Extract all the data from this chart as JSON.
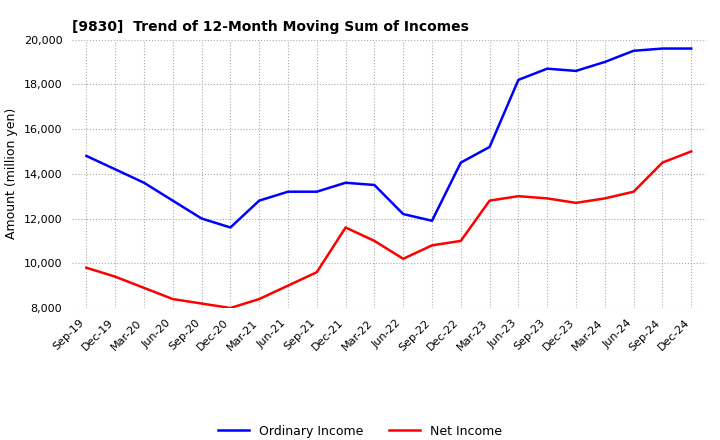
{
  "title": "[9830]  Trend of 12-Month Moving Sum of Incomes",
  "ylabel": "Amount (million yen)",
  "ylim": [
    8000,
    20000
  ],
  "yticks": [
    8000,
    10000,
    12000,
    14000,
    16000,
    18000,
    20000
  ],
  "line_color_ordinary": "#0000FF",
  "line_color_net": "#FF0000",
  "legend_ordinary": "Ordinary Income",
  "legend_net": "Net Income",
  "x_labels": [
    "Sep-19",
    "Dec-19",
    "Mar-20",
    "Jun-20",
    "Sep-20",
    "Dec-20",
    "Mar-21",
    "Jun-21",
    "Sep-21",
    "Dec-21",
    "Mar-22",
    "Jun-22",
    "Sep-22",
    "Dec-22",
    "Mar-23",
    "Jun-23",
    "Sep-23",
    "Dec-23",
    "Mar-24",
    "Jun-24",
    "Sep-24",
    "Dec-24"
  ],
  "ordinary_income": [
    14800,
    14200,
    13600,
    12800,
    12000,
    11600,
    12800,
    13200,
    13200,
    13600,
    13500,
    12200,
    11900,
    14500,
    15200,
    18200,
    18700,
    18600,
    19000,
    19500,
    19600,
    19600
  ],
  "net_income": [
    9800,
    9400,
    8900,
    8400,
    8200,
    8000,
    8400,
    9000,
    9600,
    11600,
    11000,
    10200,
    10800,
    11000,
    12800,
    13000,
    12900,
    12700,
    12900,
    13200,
    14500,
    15000
  ],
  "grid_color": "#aaaaaa",
  "grid_linestyle": ":",
  "grid_linewidth": 0.8,
  "title_fontsize": 10,
  "tick_fontsize": 8,
  "ylabel_fontsize": 9,
  "line_width": 1.8
}
